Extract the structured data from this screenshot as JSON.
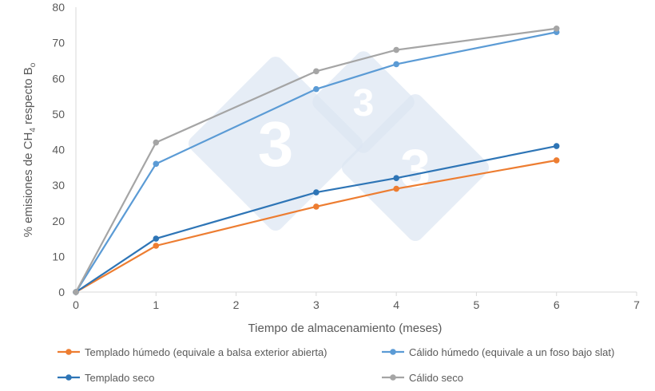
{
  "chart_data": {
    "type": "line",
    "xlabel": "Tiempo de almacenamiento (meses)",
    "ylabel_parts": {
      "pre": "% emisiones de CH",
      "sub1": "4",
      "mid": " respecto B",
      "sub2": "o"
    },
    "xlim": [
      0,
      7
    ],
    "ylim": [
      0,
      80
    ],
    "xticks": [
      0,
      1,
      2,
      3,
      4,
      5,
      6,
      7
    ],
    "yticks": [
      0,
      10,
      20,
      30,
      40,
      50,
      60,
      70,
      80
    ],
    "grid": false,
    "legend_placement": "bottom",
    "x": [
      0,
      1,
      3,
      4,
      6
    ],
    "series": [
      {
        "name": "Templado húmedo (equivale a balsa exterior abierta)",
        "color": "#ED7D31",
        "values": [
          0,
          13,
          24,
          29,
          37
        ]
      },
      {
        "name": "Cálido húmedo (equivale a un foso bajo slat)",
        "color": "#5B9BD5",
        "values": [
          0,
          36,
          57,
          64,
          73
        ]
      },
      {
        "name": "Templado seco",
        "color": "#2E75B6",
        "values": [
          0,
          15,
          28,
          32,
          41
        ]
      },
      {
        "name": "Cálido seco",
        "color": "#A5A5A5",
        "values": [
          0,
          42,
          62,
          68,
          74
        ]
      }
    ]
  },
  "watermark": {
    "text": "3",
    "color": "#DCE6F2"
  }
}
